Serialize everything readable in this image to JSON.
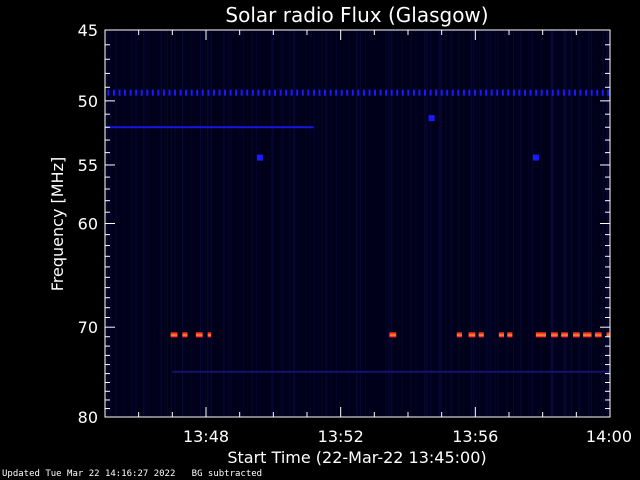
{
  "chart_data": {
    "type": "heatmap",
    "title": "Solar radio Flux (Glasgow)",
    "xlabel": "Start Time (22-Mar-22 13:45:00)",
    "ylabel": "Frequency [MHz]",
    "x_unit": "minutes after 13:45:00",
    "xlim": [
      0,
      15
    ],
    "x_ticks": [
      {
        "label": "13:48",
        "value": 3
      },
      {
        "label": "13:52",
        "value": 7
      },
      {
        "label": "13:56",
        "value": 11
      },
      {
        "label": "14:00",
        "value": 15
      }
    ],
    "ylim": [
      45,
      80
    ],
    "y_scale": "log",
    "y_ticks": [
      45,
      50,
      55,
      60,
      70,
      80
    ],
    "colors": {
      "background": "#00001a",
      "band_blue": "#1a1aff",
      "burst_red": "#ff3030",
      "burst_orange": "#ff8c1a",
      "text": "#ffffff"
    },
    "features": {
      "dotted_band": {
        "freq_mhz": 49.4,
        "x_start": 0.1,
        "x_end": 15.0,
        "step": 0.165
      },
      "line_band": {
        "freq_mhz": 52.0,
        "x_start": 0.0,
        "x_end": 6.2
      },
      "faint_band": {
        "freq_mhz": 74.8,
        "x_start": 2.0,
        "x_end": 15.0
      },
      "blobs": [
        {
          "x": 4.6,
          "freq_mhz": 54.4
        },
        {
          "x": 12.8,
          "freq_mhz": 54.4
        },
        {
          "x": 9.7,
          "freq_mhz": 51.3
        }
      ],
      "bursts_70_8mhz": [
        [
          1.95,
          2.15
        ],
        [
          2.3,
          2.45
        ],
        [
          2.7,
          2.9
        ],
        [
          3.05,
          3.15
        ],
        [
          8.45,
          8.65
        ],
        [
          10.45,
          10.6
        ],
        [
          10.8,
          11.0
        ],
        [
          11.1,
          11.25
        ],
        [
          11.7,
          11.85
        ],
        [
          11.95,
          12.1
        ],
        [
          12.8,
          13.1
        ],
        [
          13.25,
          13.45
        ],
        [
          13.55,
          13.75
        ],
        [
          13.9,
          14.1
        ],
        [
          14.2,
          14.45
        ],
        [
          14.55,
          14.75
        ],
        [
          14.9,
          15.0
        ]
      ]
    }
  },
  "footer": {
    "updated": "Updated Tue Mar 22 14:16:27 2022",
    "note": "BG subtracted"
  }
}
